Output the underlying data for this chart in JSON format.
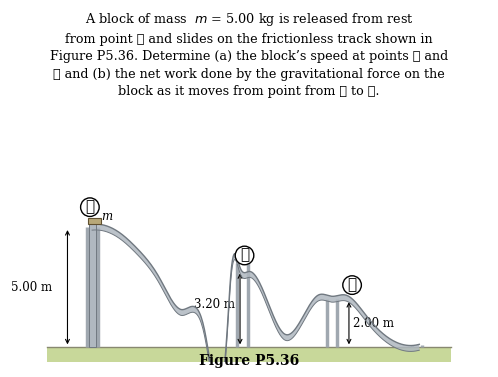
{
  "title_text": "Figure P5.36",
  "paragraph": "A block of mass   m = 5.00 kg is released from rest\nfrom point Ⓐ and slides on the frictionless track shown in\nFigure P5.36. Determine (a) the block’s speed at points Ⓑ and\nⒸ and (b) the net work done by the gravitational force on the\nblock as it moves from point from Ⓐ to Ⓒ.",
  "bg_color": "#ffffff",
  "ground_color_top": "#c8d89a",
  "ground_color_bot": "#a8b870",
  "track_color": "#b0b8c0",
  "track_edge_color": "#707880",
  "support_color": "#a0a8b0",
  "label_A": "Ⓐ",
  "label_B": "Ⓑ",
  "label_C": "Ⓒ",
  "label_m": "m",
  "label_500": "5.00 m",
  "label_320": "3.20 m",
  "label_200": "2.00 m",
  "arrow_color": "#000000",
  "text_color": "#000000"
}
